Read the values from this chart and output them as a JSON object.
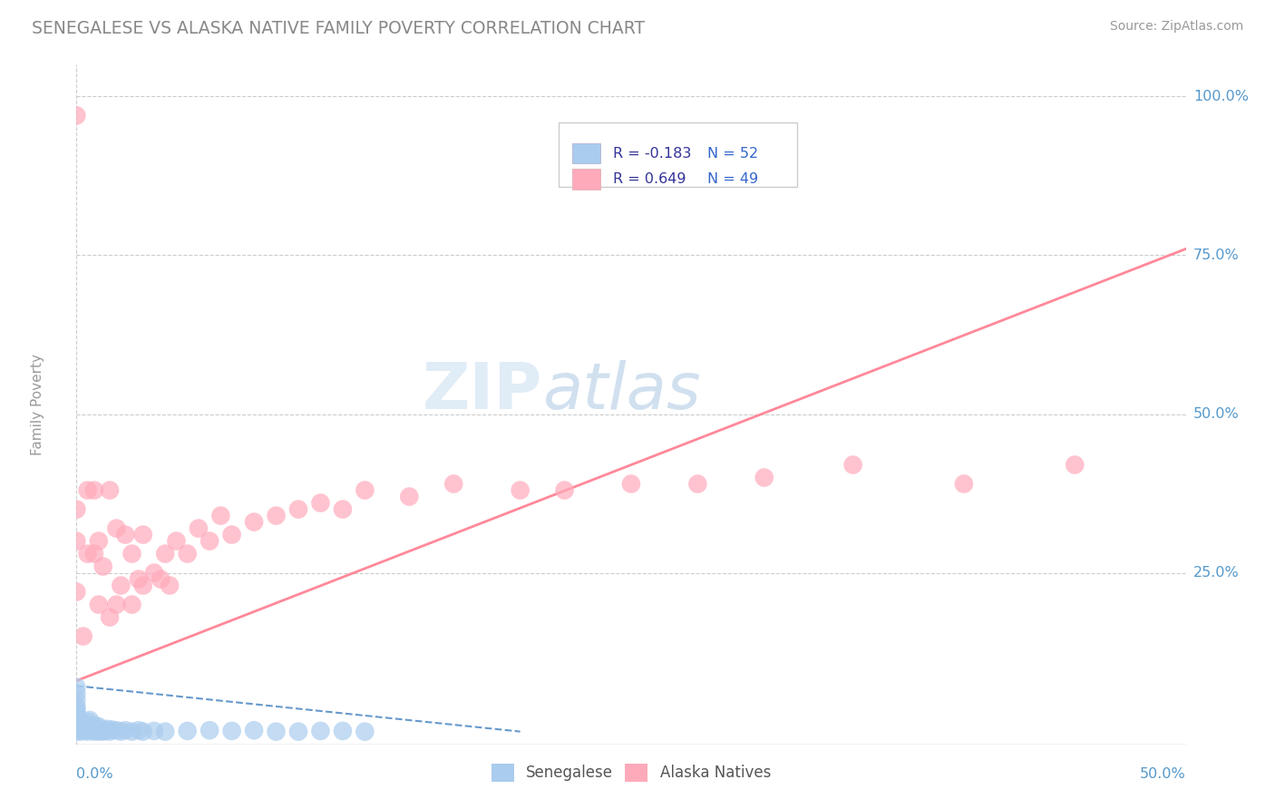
{
  "title": "SENEGALESE VS ALASKA NATIVE FAMILY POVERTY CORRELATION CHART",
  "source": "Source: ZipAtlas.com",
  "ylabel": "Family Poverty",
  "watermark_zip": "ZIP",
  "watermark_atlas": "atlas",
  "legend_r1": "R = -0.183",
  "legend_n1": "N = 52",
  "legend_r2": "R = 0.649",
  "legend_n2": "N = 49",
  "xlim": [
    0.0,
    0.5
  ],
  "ylim": [
    -0.02,
    1.05
  ],
  "background_color": "#ffffff",
  "grid_color": "#cccccc",
  "title_color": "#777777",
  "axis_label_color": "#5599cc",
  "blue_color": "#aaccee",
  "pink_color": "#ffaabb",
  "blue_line_color": "#6699cc",
  "pink_line_color": "#ff8899",
  "sen_x": [
    0.0,
    0.0,
    0.0,
    0.0,
    0.0,
    0.0,
    0.0,
    0.0,
    0.0,
    0.0,
    0.0,
    0.0,
    0.002,
    0.002,
    0.003,
    0.003,
    0.004,
    0.004,
    0.005,
    0.005,
    0.005,
    0.006,
    0.006,
    0.007,
    0.008,
    0.008,
    0.009,
    0.01,
    0.01,
    0.011,
    0.012,
    0.013,
    0.014,
    0.015,
    0.016,
    0.018,
    0.02,
    0.022,
    0.025,
    0.028,
    0.03,
    0.035,
    0.04,
    0.05,
    0.06,
    0.07,
    0.08,
    0.09,
    0.1,
    0.11,
    0.12,
    0.13
  ],
  "sen_y": [
    0.0,
    0.005,
    0.01,
    0.015,
    0.02,
    0.025,
    0.03,
    0.035,
    0.04,
    0.05,
    0.06,
    0.07,
    0.0,
    0.008,
    0.003,
    0.012,
    0.002,
    0.01,
    0.0,
    0.005,
    0.015,
    0.004,
    0.018,
    0.002,
    0.0,
    0.01,
    0.005,
    0.0,
    0.008,
    0.003,
    0.0,
    0.002,
    0.004,
    0.0,
    0.003,
    0.002,
    0.0,
    0.002,
    0.0,
    0.002,
    0.0,
    0.001,
    0.0,
    0.001,
    0.002,
    0.001,
    0.002,
    0.0,
    0.0,
    0.001,
    0.001,
    0.0
  ],
  "ak_x": [
    0.0,
    0.0,
    0.0,
    0.0,
    0.003,
    0.005,
    0.005,
    0.008,
    0.008,
    0.01,
    0.01,
    0.012,
    0.015,
    0.015,
    0.018,
    0.018,
    0.02,
    0.022,
    0.025,
    0.025,
    0.028,
    0.03,
    0.03,
    0.035,
    0.038,
    0.04,
    0.042,
    0.045,
    0.05,
    0.055,
    0.06,
    0.065,
    0.07,
    0.08,
    0.09,
    0.1,
    0.11,
    0.12,
    0.13,
    0.15,
    0.17,
    0.2,
    0.22,
    0.25,
    0.28,
    0.31,
    0.35,
    0.4,
    0.45
  ],
  "ak_y": [
    0.97,
    0.22,
    0.3,
    0.35,
    0.15,
    0.28,
    0.38,
    0.28,
    0.38,
    0.2,
    0.3,
    0.26,
    0.18,
    0.38,
    0.2,
    0.32,
    0.23,
    0.31,
    0.2,
    0.28,
    0.24,
    0.23,
    0.31,
    0.25,
    0.24,
    0.28,
    0.23,
    0.3,
    0.28,
    0.32,
    0.3,
    0.34,
    0.31,
    0.33,
    0.34,
    0.35,
    0.36,
    0.35,
    0.38,
    0.37,
    0.39,
    0.38,
    0.38,
    0.39,
    0.39,
    0.4,
    0.42,
    0.39,
    0.42
  ],
  "ak_line_x": [
    0.0,
    0.5
  ],
  "ak_line_y": [
    0.08,
    0.76
  ],
  "sen_line_x": [
    0.0,
    0.2
  ],
  "sen_line_y": [
    0.072,
    0.0
  ]
}
